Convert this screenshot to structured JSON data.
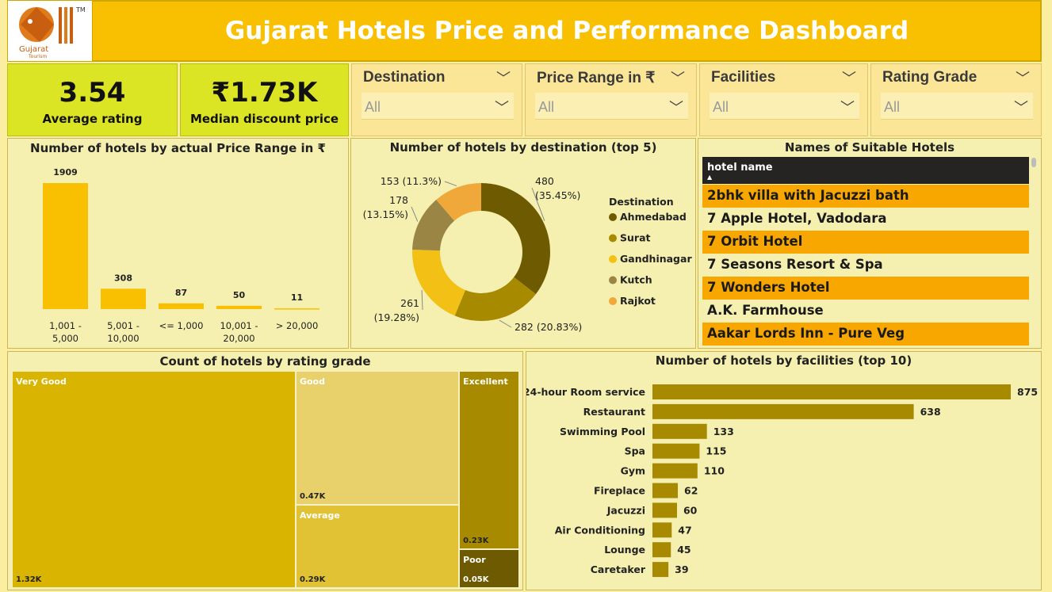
{
  "header": {
    "title": "Gujarat Hotels Price and Performance Dashboard",
    "logo_text": "Gujarat",
    "logo_sub": "Tourism",
    "logo_tm": "TM"
  },
  "kpis": [
    {
      "value": "3.54",
      "label": "Average rating"
    },
    {
      "value": "₹1.73K",
      "label": "Median discount price"
    }
  ],
  "slicers": [
    {
      "title": "Destination",
      "value": "All"
    },
    {
      "title": "Price Range in ₹",
      "value": "All"
    },
    {
      "title": "Facilities",
      "value": "All"
    },
    {
      "title": "Rating Grade",
      "value": "All"
    }
  ],
  "table": {
    "title": "Names of Suitable Hotels",
    "column": "hotel name",
    "sort_icon": "sort-ascending-icon",
    "rows": [
      "2bhk villa with Jacuzzi bath",
      "7 Apple Hotel, Vadodara",
      "7 Orbit Hotel",
      "7 Seasons Resort & Spa",
      "7 Wonders Hotel",
      "A.K. Farmhouse",
      "Aakar Lords Inn - Pure Veg"
    ]
  },
  "chart_data": [
    {
      "type": "bar",
      "title": "Number of hotels by actual Price Range in ₹",
      "categories": [
        "1,001 - 5,000",
        "5,001 - 10,000",
        "<= 1,000",
        "10,001 - 20,000",
        "> 20,000"
      ],
      "category_lines": [
        [
          "1,001 -",
          "5,000"
        ],
        [
          "5,001 -",
          "10,000"
        ],
        [
          "<= 1,000"
        ],
        [
          "10,001 -",
          "20,000"
        ],
        [
          "> 20,000"
        ]
      ],
      "values": [
        1909,
        308,
        87,
        50,
        11
      ],
      "color": "#f8c000"
    },
    {
      "type": "pie",
      "title": "Number of hotels by destination (top 5)",
      "legend_title": "Destination",
      "slices": [
        {
          "name": "Ahmedabad",
          "value": 480,
          "label": [
            "480",
            "(35.45%)"
          ],
          "color": "#6e5a00"
        },
        {
          "name": "Surat",
          "value": 282,
          "label": [
            "282 (20.83%)"
          ],
          "color": "#a88a00"
        },
        {
          "name": "Gandhinagar",
          "value": 261,
          "label": [
            "261",
            "(19.28%)"
          ],
          "color": "#f3c116"
        },
        {
          "name": "Kutch",
          "value": 178,
          "label": [
            "178",
            "(13.15%)"
          ],
          "color": "#9a8545"
        },
        {
          "name": "Rajkot",
          "value": 153,
          "label": [
            "153 (11.3%)"
          ],
          "color": "#f0a83a"
        }
      ]
    },
    {
      "type": "treemap",
      "title": "Count of hotels by rating grade",
      "items": [
        {
          "name": "Very Good",
          "value": 1320,
          "label": "1.32K",
          "color": "#d9b400"
        },
        {
          "name": "Good",
          "value": 470,
          "label": "0.47K",
          "color": "#e8d06a"
        },
        {
          "name": "Average",
          "value": 290,
          "label": "0.29K",
          "color": "#e2c235"
        },
        {
          "name": "Excellent",
          "value": 230,
          "label": "0.23K",
          "color": "#a88a00"
        },
        {
          "name": "Poor",
          "value": 50,
          "label": "0.05K",
          "color": "#6e5a00"
        }
      ]
    },
    {
      "type": "bar",
      "orientation": "horizontal",
      "title": "Number of hotels by facilities (top 10)",
      "categories": [
        "24-hour Room service",
        "Restaurant",
        "Swimming Pool",
        "Spa",
        "Gym",
        "Fireplace",
        "Jacuzzi",
        "Air Conditioning",
        "Lounge",
        "Caretaker"
      ],
      "values": [
        875,
        638,
        133,
        115,
        110,
        62,
        60,
        47,
        45,
        39
      ],
      "color": "#a88a00"
    }
  ]
}
